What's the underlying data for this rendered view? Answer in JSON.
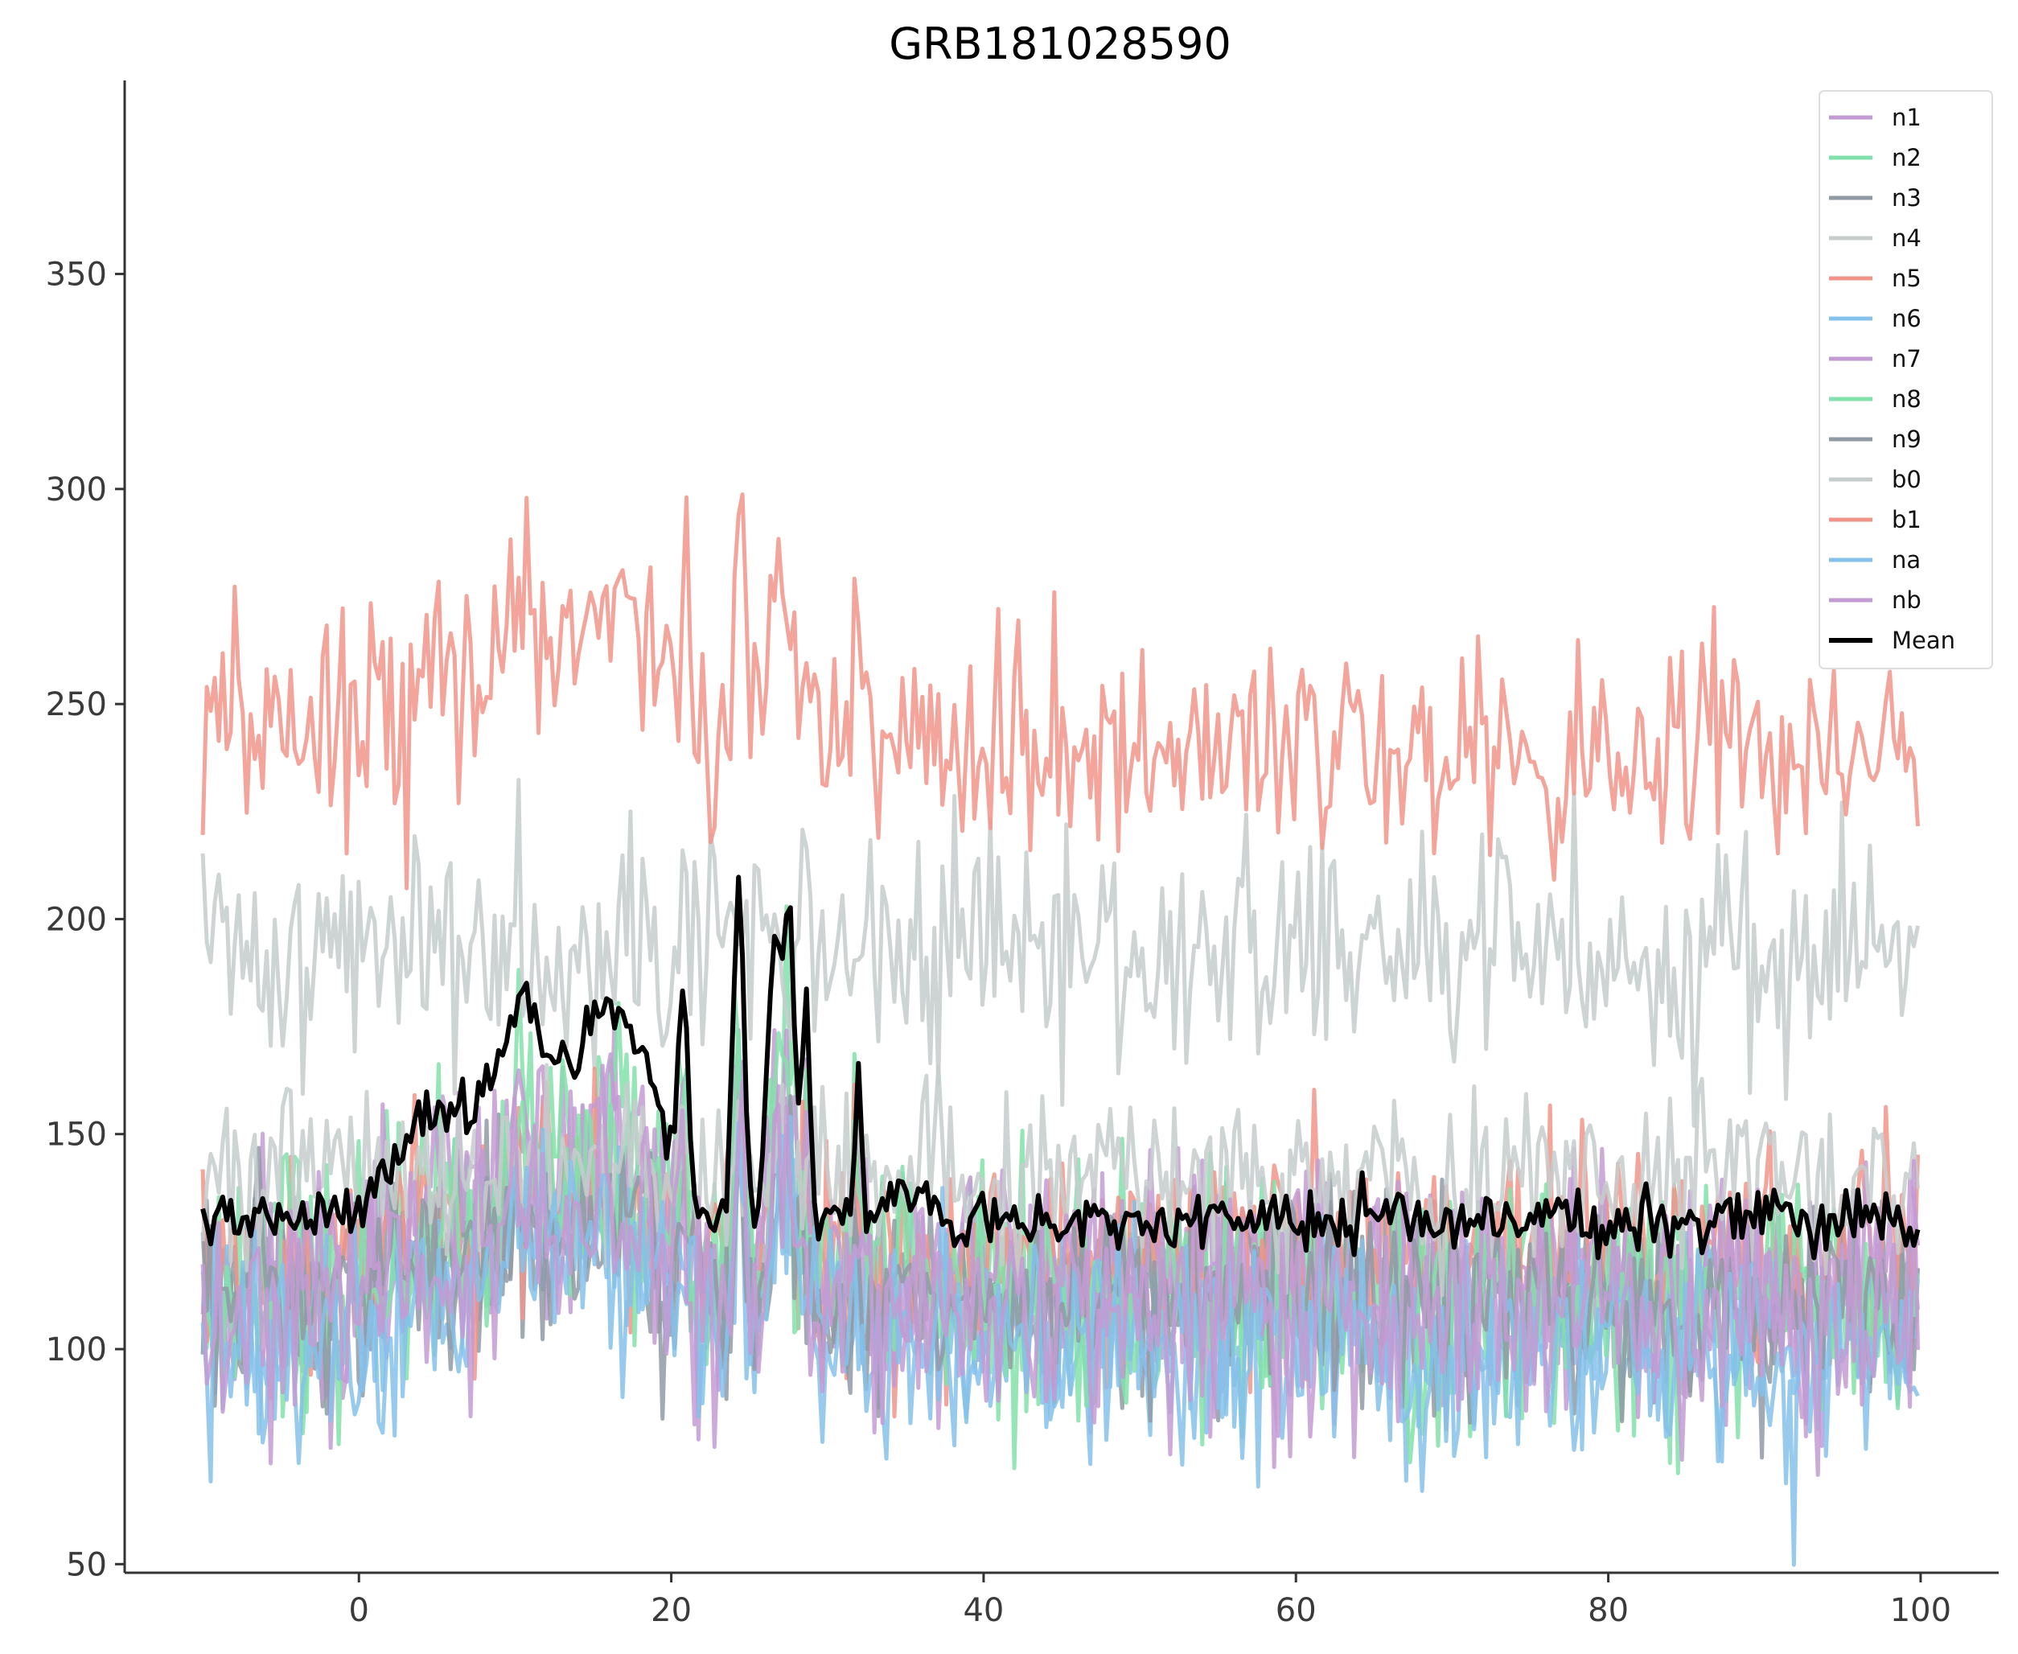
{
  "chart_data": {
    "type": "line",
    "title": "GRB181028590",
    "xlabel": "",
    "ylabel": "",
    "xlim": [
      -15,
      105
    ],
    "ylim": [
      48,
      395
    ],
    "x_ticks": [
      0,
      20,
      40,
      60,
      80,
      100
    ],
    "y_ticks": [
      50,
      100,
      150,
      200,
      250,
      300,
      350
    ],
    "x_range": [
      -10,
      100
    ],
    "step": 0.256,
    "legend_position": "top-right",
    "series": [
      {
        "name": "n1",
        "color": "#c39bd3",
        "baseline": 112,
        "noise": 14,
        "peak_amp": 45,
        "seed": 11
      },
      {
        "name": "n2",
        "color": "#82e0aa",
        "baseline": 115,
        "noise": 14,
        "peak_amp": 60,
        "seed": 23
      },
      {
        "name": "n3",
        "color": "#909aa5",
        "baseline": 112,
        "noise": 12,
        "peak_amp": 30,
        "seed": 37
      },
      {
        "name": "n4",
        "color": "#c6cccc",
        "baseline": 192,
        "noise": 14,
        "peak_amp": 10,
        "seed": 41
      },
      {
        "name": "n5",
        "color": "#f1948a",
        "baseline": 122,
        "noise": 14,
        "peak_amp": 25,
        "seed": 53
      },
      {
        "name": "n6",
        "color": "#85c1e9",
        "baseline": 102,
        "noise": 13,
        "peak_amp": 45,
        "seed": 61
      },
      {
        "name": "n7",
        "color": "#c39bd3",
        "baseline": 118,
        "noise": 14,
        "peak_amp": 50,
        "seed": 71
      },
      {
        "name": "n8",
        "color": "#82e0aa",
        "baseline": 110,
        "noise": 14,
        "peak_amp": 55,
        "seed": 83
      },
      {
        "name": "n9",
        "color": "#909aa5",
        "baseline": 110,
        "noise": 12,
        "peak_amp": 30,
        "seed": 97
      },
      {
        "name": "b0",
        "color": "#c6cccc",
        "baseline": 140,
        "noise": 10,
        "peak_amp": 5,
        "seed": 101
      },
      {
        "name": "b1",
        "color": "#f1948a",
        "baseline": 240,
        "noise": 13,
        "peak_amp": 55,
        "seed": 113
      },
      {
        "name": "na",
        "color": "#85c1e9",
        "baseline": 100,
        "noise": 13,
        "peak_amp": 40,
        "seed": 127
      },
      {
        "name": "nb",
        "color": "#c39bd3",
        "baseline": 108,
        "noise": 14,
        "peak_amp": 40,
        "seed": 131
      }
    ],
    "mean": {
      "name": "Mean",
      "color": "#000000",
      "baseline": 130,
      "noise": 3.5
    },
    "burst_profile": [
      {
        "center": 5,
        "width": 2.5,
        "height": 25
      },
      {
        "center": 10.5,
        "width": 1.8,
        "height": 48
      },
      {
        "center": 15.5,
        "width": 1.8,
        "height": 45
      },
      {
        "center": 18.5,
        "width": 1.5,
        "height": 25
      },
      {
        "center": 20.8,
        "width": 0.3,
        "height": 45
      },
      {
        "center": 24.3,
        "width": 0.35,
        "height": 80
      },
      {
        "center": 26.7,
        "width": 0.45,
        "height": 65
      },
      {
        "center": 27.6,
        "width": 0.3,
        "height": 65
      },
      {
        "center": 28.6,
        "width": 0.25,
        "height": 50
      },
      {
        "center": 32,
        "width": 0.2,
        "height": 35
      },
      {
        "center": 35,
        "width": 1.2,
        "height": 8
      }
    ]
  }
}
